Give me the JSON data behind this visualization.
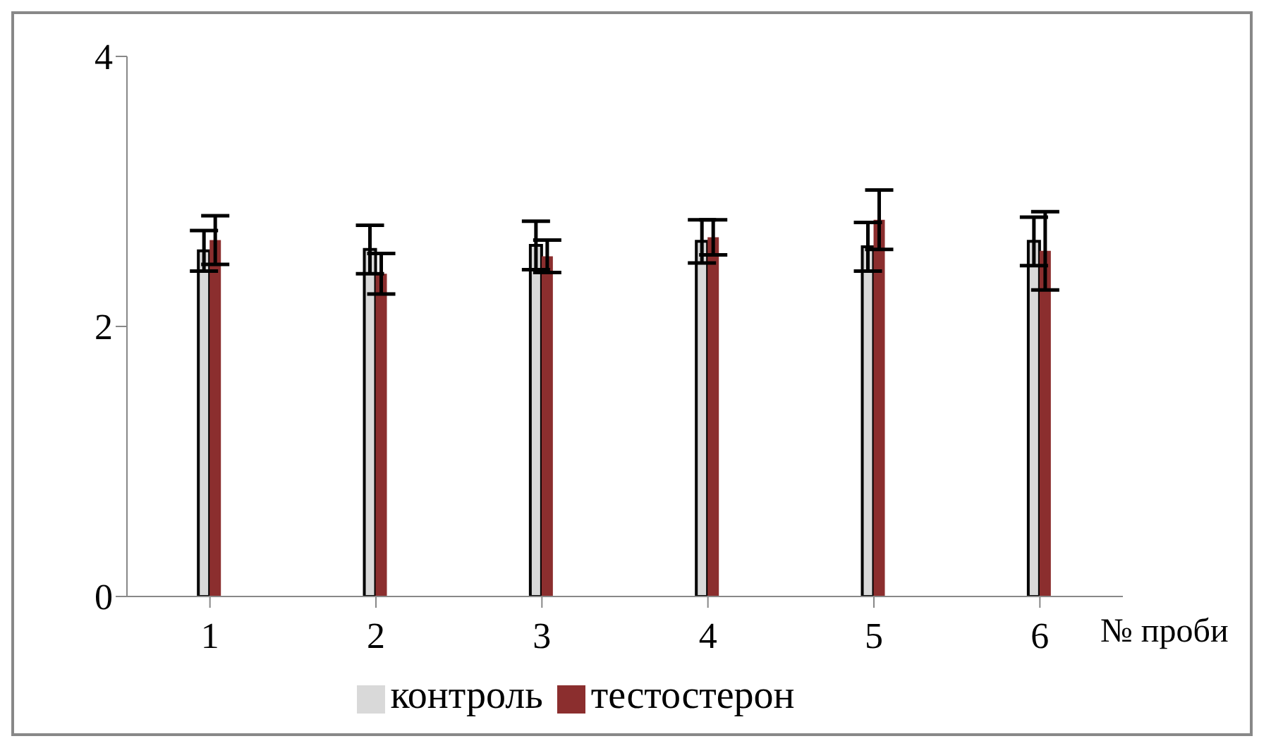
{
  "chart_data": {
    "type": "bar",
    "xlabel": "№ проби",
    "categories": [
      "1",
      "2",
      "3",
      "4",
      "5",
      "6"
    ],
    "series": [
      {
        "name": "контроль",
        "color": "#d9d9d9",
        "values": [
          2.56,
          2.57,
          2.6,
          2.63,
          2.59,
          2.63
        ],
        "errors": [
          0.15,
          0.18,
          0.18,
          0.16,
          0.18,
          0.18
        ]
      },
      {
        "name": "тестостерон",
        "color": "#8b2e2e",
        "values": [
          2.64,
          2.39,
          2.52,
          2.66,
          2.79,
          2.56
        ],
        "errors": [
          0.18,
          0.15,
          0.12,
          0.13,
          0.22,
          0.29
        ]
      }
    ],
    "ylim": [
      0,
      4
    ],
    "yticks": [
      0,
      2,
      4
    ],
    "grid": false,
    "legend": "bottom"
  }
}
